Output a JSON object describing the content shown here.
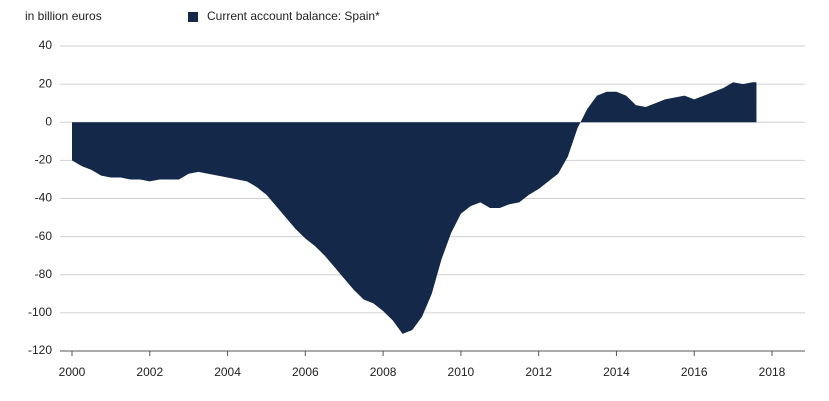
{
  "chart_data": {
    "type": "area",
    "y_label": "in billion euros",
    "series": [
      {
        "name": "Current account balance: Spain*",
        "color": "#14284a",
        "x": [
          2000.0,
          2000.25,
          2000.5,
          2000.75,
          2001.0,
          2001.25,
          2001.5,
          2001.75,
          2002.0,
          2002.25,
          2002.5,
          2002.75,
          2003.0,
          2003.25,
          2003.5,
          2003.75,
          2004.0,
          2004.25,
          2004.5,
          2004.75,
          2005.0,
          2005.25,
          2005.5,
          2005.75,
          2006.0,
          2006.25,
          2006.5,
          2006.75,
          2007.0,
          2007.25,
          2007.5,
          2007.75,
          2008.0,
          2008.25,
          2008.5,
          2008.75,
          2009.0,
          2009.25,
          2009.5,
          2009.75,
          2010.0,
          2010.25,
          2010.5,
          2010.75,
          2011.0,
          2011.25,
          2011.5,
          2011.75,
          2012.0,
          2012.25,
          2012.5,
          2012.75,
          2013.0,
          2013.25,
          2013.5,
          2013.75,
          2014.0,
          2014.25,
          2014.5,
          2014.75,
          2015.0,
          2015.25,
          2015.5,
          2015.75,
          2016.0,
          2016.25,
          2016.5,
          2016.75,
          2017.0,
          2017.25,
          2017.5,
          2017.6
        ],
        "values": [
          -20,
          -23,
          -25,
          -28,
          -29,
          -29,
          -30,
          -30,
          -31,
          -30,
          -30,
          -30,
          -27,
          -26,
          -27,
          -28,
          -29,
          -30,
          -31,
          -34,
          -38,
          -44,
          -50,
          -56,
          -61,
          -65,
          -70,
          -76,
          -82,
          -88,
          -93,
          -95,
          -99,
          -104,
          -111,
          -109,
          -102,
          -90,
          -72,
          -58,
          -48,
          -44,
          -42,
          -45,
          -45,
          -43,
          -42,
          -38,
          -35,
          -31,
          -27,
          -18,
          -3,
          7,
          14,
          16,
          16,
          14,
          9,
          8,
          10,
          12,
          13,
          14,
          12,
          14,
          16,
          18,
          21,
          20,
          21,
          21
        ]
      }
    ],
    "xlim": [
      2000,
      2018
    ],
    "xticks": [
      2000,
      2002,
      2004,
      2006,
      2008,
      2010,
      2012,
      2014,
      2016,
      2018
    ],
    "ylim": [
      -120,
      40
    ],
    "yticks": [
      -120,
      -100,
      -80,
      -60,
      -40,
      -20,
      0,
      20,
      40
    ],
    "grid": true,
    "legend": "top"
  }
}
